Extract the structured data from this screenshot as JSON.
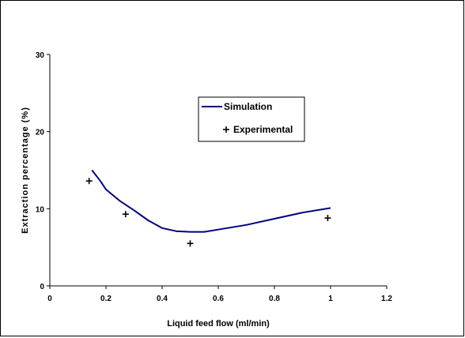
{
  "chart_data": {
    "type": "line",
    "xlabel": "Liquid feed flow (ml/min)",
    "ylabel": "Extraction percentage (%)",
    "xlim": [
      0,
      1.2
    ],
    "ylim": [
      0,
      30
    ],
    "x_ticks": [
      0,
      0.2,
      0.4,
      0.6,
      0.8,
      1,
      1.2
    ],
    "y_ticks": [
      0,
      10,
      20,
      30
    ],
    "x_tick_labels": [
      "0",
      "0.2",
      "0.4",
      "0.6",
      "0.8",
      "1",
      "1.2"
    ],
    "y_tick_labels": [
      "0",
      "10",
      "20",
      "30"
    ],
    "grid": false,
    "legend_position": "top-right",
    "series": [
      {
        "name": "Simulation",
        "style": "line",
        "color": "#000080",
        "x": [
          0.15,
          0.18,
          0.2,
          0.25,
          0.3,
          0.35,
          0.4,
          0.45,
          0.5,
          0.55,
          0.6,
          0.7,
          0.8,
          0.9,
          1.0
        ],
        "y": [
          15.0,
          13.6,
          12.5,
          11.0,
          9.8,
          8.5,
          7.5,
          7.1,
          7.0,
          7.0,
          7.3,
          7.9,
          8.7,
          9.5,
          10.1
        ]
      },
      {
        "name": "Experimental",
        "style": "marker",
        "marker": "+",
        "color": "#000000",
        "x": [
          0.14,
          0.27,
          0.5,
          0.99
        ],
        "y": [
          13.6,
          9.3,
          5.5,
          8.8
        ]
      }
    ]
  }
}
